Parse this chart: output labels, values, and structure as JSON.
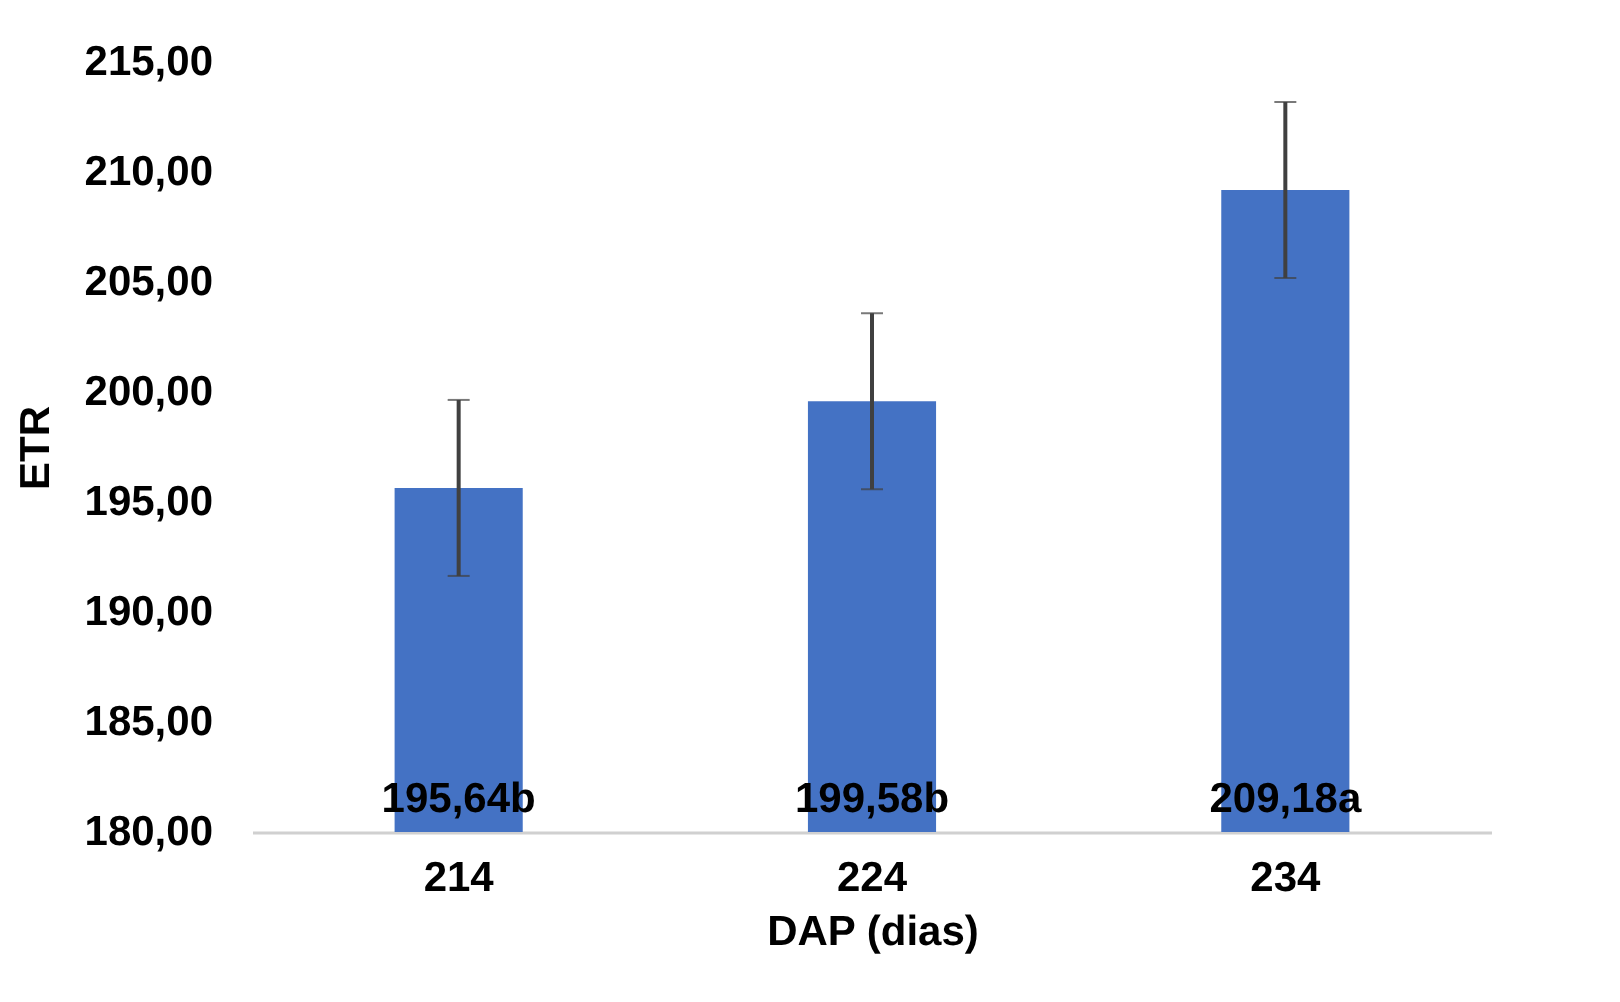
{
  "chart_data": {
    "type": "bar",
    "xlabel": "DAP (dias)",
    "ylabel": "ETR",
    "categories": [
      "214",
      "224",
      "234"
    ],
    "values": [
      195.64,
      199.58,
      209.18
    ],
    "errors": [
      4,
      4,
      4
    ],
    "value_labels": [
      "195,64b",
      "199,58b",
      "209,18a"
    ],
    "color": "#4472c4",
    "ylim": [
      180,
      215
    ],
    "yticks": [
      {
        "value": 180,
        "label": "180,00"
      },
      {
        "value": 185,
        "label": "185,00"
      },
      {
        "value": 190,
        "label": "190,00"
      },
      {
        "value": 195,
        "label": "195,00"
      },
      {
        "value": 200,
        "label": "200,00"
      },
      {
        "value": 205,
        "label": "205,00"
      },
      {
        "value": 210,
        "label": "210,00"
      },
      {
        "value": 215,
        "label": "215,00"
      }
    ],
    "grid": false
  }
}
